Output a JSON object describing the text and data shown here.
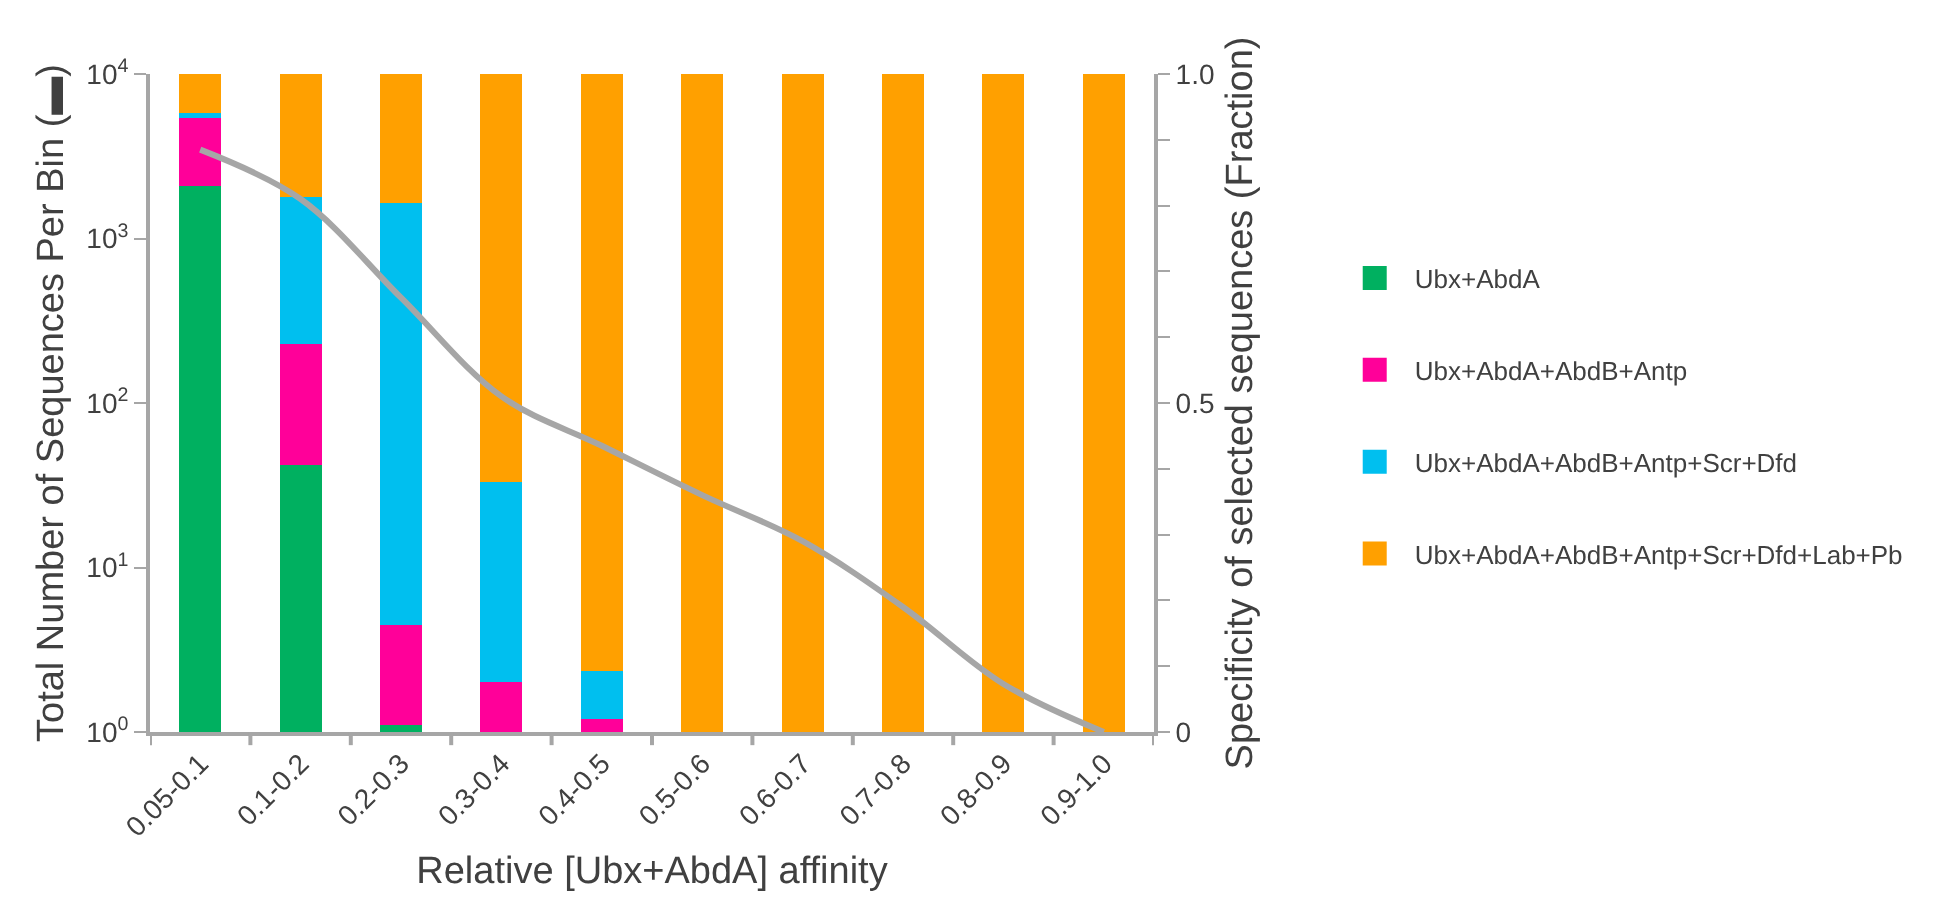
{
  "chart_data": {
    "type": "bar",
    "stacked": true,
    "log": true,
    "xlabel": "Relative [Ubx+AbdA] affinity",
    "ylabel": "Total Number of Sequences Per Bin (▬)",
    "y2label": "Specificity of selected sequences (Fraction)",
    "categories": [
      "0.05-0.1",
      "0.1-0.2",
      "0.2-0.3",
      "0.3-0.4",
      "0.4-0.5",
      "0.5-0.6",
      "0.6-0.7",
      "0.7-0.8",
      "0.8-0.9",
      "0.9-1.0"
    ],
    "series": [
      {
        "name": "Ubx+AbdA",
        "color": "#00b060",
        "values": [
          2100,
          42,
          1.1,
          null,
          null,
          null,
          null,
          null,
          null,
          null
        ]
      },
      {
        "name": "Ubx+AbdA+AbdB+Antp",
        "color": "#ff0099",
        "values": [
          3400,
          188,
          3.4,
          2,
          1.2,
          null,
          null,
          null,
          null,
          null
        ]
      },
      {
        "name": "Ubx+AbdA+AbdB+Antp+Scr+Dfd",
        "color": "#00bfef",
        "values": [
          300,
          1570,
          1645,
          31,
          1.15,
          null,
          null,
          null,
          null,
          null
        ]
      },
      {
        "name": "Ubx+AbdA+AbdB+Antp+Scr+Dfd+Lab+Pb",
        "color": "#ffa000",
        "values": [
          4200,
          8200,
          8350,
          9967,
          9998,
          10000,
          10000,
          10000,
          10000,
          10000
        ]
      },
      {
        "type": "line",
        "axis": "y2",
        "color": "#a6a6a6",
        "values": [
          0.885,
          0.81,
          0.66,
          0.51,
          0.435,
          0.36,
          0.29,
          0.19,
          0.073,
          0
        ]
      }
    ],
    "ylim": [
      1,
      10000
    ],
    "yticks": [
      {
        "value": 1,
        "label": "10$^{0}$"
      },
      {
        "value": 10,
        "label": "10$^{1}$"
      },
      {
        "value": 100,
        "label": "10$^{2}$"
      },
      {
        "value": 1000,
        "label": "10$^{3}$"
      },
      {
        "value": 10000,
        "label": "10$^{4}$"
      }
    ],
    "y2lim": [
      0,
      1
    ],
    "y2ticks": [
      0,
      {
        "value": 0.1,
        "label": null
      },
      {
        "value": 0.2,
        "label": null
      },
      {
        "value": 0.3,
        "label": null
      },
      {
        "value": 0.4,
        "label": null
      },
      0.5,
      {
        "value": 0.6,
        "label": null
      },
      {
        "value": 0.7,
        "label": null
      },
      {
        "value": 0.8,
        "label": null
      },
      {
        "value": 0.9,
        "label": null
      },
      {
        "value": 1.0,
        "label": "1.0"
      }
    ],
    "legend": "right"
  }
}
